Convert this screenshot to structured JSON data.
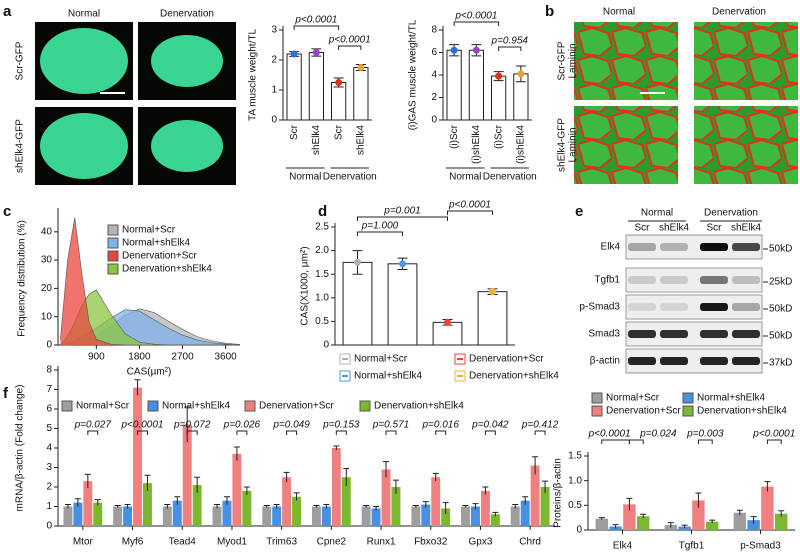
{
  "panel_labels": [
    "a",
    "b",
    "c",
    "d",
    "e",
    "f"
  ],
  "images_a": {
    "columns": [
      "Normal",
      "Denervation"
    ],
    "rows": [
      "Scr-GFP",
      "shElk4-GFP"
    ]
  },
  "images_b": {
    "columns": [
      "Normal",
      "Denervation"
    ],
    "rows": [
      [
        "Scr-GFP",
        "Laminin"
      ],
      [
        "shElk4-GFP",
        "Laminin"
      ]
    ]
  },
  "blot": {
    "groups": [
      "Normal",
      "Denervation"
    ],
    "lanes": [
      "Scr",
      "shElk4",
      "Scr",
      "shElk4"
    ],
    "rows": [
      {
        "protein": "Elk4",
        "size": "50kD"
      },
      {
        "protein": "Tgfb1",
        "size": "25kD"
      },
      {
        "protein": "p-Smad3",
        "size": "50kD"
      },
      {
        "protein": "Smad3",
        "size": "50kD"
      },
      {
        "protein": "β-actin",
        "size": "37kD"
      }
    ]
  },
  "chart_data": [
    {
      "type": "bar",
      "ylabel": "TA muscle weight/TL",
      "categories": [
        "Scr",
        "shElk4",
        "Scr",
        "shElk4"
      ],
      "groups": [
        "Normal",
        "Denervation"
      ],
      "values": [
        2.2,
        2.25,
        1.25,
        1.75
      ],
      "errors": [
        0.08,
        0.12,
        0.15,
        0.1
      ],
      "colors": [
        "#2f6fd6",
        "#9b3fd1",
        "#e0301e",
        "#f0a030"
      ],
      "ylim": [
        0,
        3
      ],
      "yticks": [
        0,
        1,
        2,
        3
      ],
      "annotations": [
        "p<0.0001",
        "p<0.0001"
      ]
    },
    {
      "type": "bar",
      "ylabel": "(i)GAS muscle weight/TL",
      "categories": [
        "(i)Scr",
        "(i)shElk4",
        "(i)Scr",
        "(i)shElk4"
      ],
      "groups": [
        "Normal",
        "Denervation"
      ],
      "values": [
        6.2,
        6.2,
        3.9,
        4.1
      ],
      "errors": [
        0.5,
        0.5,
        0.4,
        0.7
      ],
      "colors": [
        "#2f6fd6",
        "#9b3fd1",
        "#e0301e",
        "#f0a030"
      ],
      "ylim": [
        0,
        8
      ],
      "yticks": [
        0,
        2,
        4,
        6,
        8
      ],
      "annotations": [
        "p<0.0001",
        "p=0.954"
      ]
    },
    {
      "type": "area",
      "ylabel": "Frequency distribution (%)",
      "xlabel": "CAS(µm²)",
      "x": [
        150,
        300,
        450,
        600,
        750,
        900,
        1200,
        1500,
        1800,
        2100,
        2400,
        2700,
        3000,
        3300,
        3600,
        3900
      ],
      "xlim": [
        100,
        3900
      ],
      "xticks": [
        900,
        1800,
        2700,
        3600
      ],
      "ylim": [
        0,
        47
      ],
      "yticks": [
        0,
        10,
        20,
        30,
        40
      ],
      "series": [
        {
          "name": "Normal+Scr",
          "color": "#b5b5b5",
          "values": [
            0,
            0,
            0.5,
            1,
            2,
            3,
            6.5,
            10.5,
            12.8,
            11.5,
            8.5,
            5.5,
            3,
            1.5,
            0.6,
            0.2
          ]
        },
        {
          "name": "Normal+shElk4",
          "color": "#7fb2e8",
          "values": [
            0,
            0.5,
            1.5,
            3,
            4.5,
            6,
            9.5,
            12.5,
            12,
            9,
            6,
            3.5,
            1.8,
            0.8,
            0.3,
            0
          ]
        },
        {
          "name": "Denervation+Scr",
          "color": "#e8453c",
          "values": [
            2,
            30,
            45,
            25,
            8,
            2,
            0.3,
            0,
            0,
            0,
            0,
            0,
            0,
            0,
            0,
            0
          ]
        },
        {
          "name": "Denervation+shElk4",
          "color": "#8cc63f",
          "values": [
            0,
            3,
            8,
            14,
            18,
            19.5,
            11,
            4,
            1,
            0.3,
            0,
            0,
            0,
            0,
            0,
            0
          ]
        }
      ]
    },
    {
      "type": "bar",
      "ylabel": "CAS(X1000, µm²)",
      "legend": true,
      "categories": [
        "Normal+Scr",
        "Normal+shElk4",
        "Denervation+Scr",
        "Denervation+shElk4"
      ],
      "values": [
        1.75,
        1.72,
        0.48,
        1.13
      ],
      "errors": [
        0.25,
        0.12,
        0.06,
        0.06
      ],
      "colors": [
        "#b0b0b0",
        "#4a9be0",
        "#e8453c",
        "#f5b041"
      ],
      "ylim": [
        0,
        2.5
      ],
      "yticks": [
        0,
        0.5,
        {
          "value": 1,
          "label": "1.0"
        },
        1.5,
        {
          "value": 2,
          "label": "2.0"
        },
        2.5
      ],
      "annotations": [
        "p=0.001",
        "p=1.000",
        "p<0.0001"
      ]
    },
    {
      "type": "grouped_bar",
      "ylabel": "mRNA/β-actin (Fold change)",
      "categories": [
        "Mtor",
        "Myf6",
        "Tead4",
        "Myod1",
        "Trim63",
        "Cpne2",
        "Runx1",
        "Fbxo32",
        "Gpx3",
        "Chrd"
      ],
      "ylim": [
        0,
        8
      ],
      "yticks": [
        0,
        1,
        2,
        3,
        4,
        5,
        6,
        7,
        8
      ],
      "series": [
        {
          "name": "Normal+Scr",
          "color": "#9e9e9e",
          "values": [
            1,
            1,
            1,
            1,
            1,
            1,
            1,
            1,
            1,
            1
          ],
          "errors": [
            0.1,
            0.05,
            0.1,
            0.1,
            0.05,
            0.05,
            0.05,
            0.05,
            0.05,
            0.1
          ]
        },
        {
          "name": "Normal+shElk4",
          "color": "#4a90e2",
          "values": [
            1.2,
            1,
            1.3,
            1.3,
            1,
            1,
            0.9,
            1.1,
            1,
            1.3
          ],
          "errors": [
            0.2,
            0.1,
            0.2,
            0.2,
            0.1,
            0.1,
            0.1,
            0.15,
            0.15,
            0.2
          ]
        },
        {
          "name": "Denervation+Scr",
          "color": "#f08080",
          "values": [
            2.3,
            7.1,
            5.2,
            3.7,
            2.5,
            4,
            2.9,
            2.5,
            1.8,
            3.1
          ],
          "errors": [
            0.35,
            0.4,
            0.9,
            0.35,
            0.25,
            0.1,
            0.4,
            0.2,
            0.2,
            0.45
          ]
        },
        {
          "name": "Denervation+shElk4",
          "color": "#7cb82f",
          "values": [
            1.2,
            2.2,
            2.1,
            1.8,
            1.5,
            2.5,
            2,
            0.9,
            0.6,
            2
          ],
          "errors": [
            0.15,
            0.4,
            0.4,
            0.2,
            0.2,
            0.45,
            0.35,
            0.3,
            0.1,
            0.3
          ]
        }
      ],
      "annotations": [
        "p=0.027",
        "p<0.0001",
        "p=0.072",
        "p=0.026",
        "p=0.049",
        "p=0.153",
        "p=0.571",
        "p=0.016",
        "p=0.042",
        "p=0.412"
      ]
    },
    {
      "type": "grouped_bar",
      "ylabel": "Proteins/β-actin",
      "categories": [
        "Elk4",
        "Tgfb1",
        "p-Smad3"
      ],
      "ylim": [
        0,
        1.5
      ],
      "yticks": [
        0,
        0.5,
        {
          "value": 1,
          "label": "1.0"
        },
        1.5
      ],
      "series": [
        {
          "name": "Normal+Scr",
          "color": "#9e9e9e",
          "values": [
            0.23,
            0.1,
            0.35
          ],
          "errors": [
            0.02,
            0.05,
            0.05
          ]
        },
        {
          "name": "Normal+shElk4",
          "color": "#4a90e2",
          "values": [
            0.07,
            0.07,
            0.2
          ],
          "errors": [
            0.04,
            0.03,
            0.07
          ]
        },
        {
          "name": "Denervation+Scr",
          "color": "#f08080",
          "values": [
            0.52,
            0.6,
            0.88
          ],
          "errors": [
            0.12,
            0.15,
            0.1
          ]
        },
        {
          "name": "Denervation+shElk4",
          "color": "#7cb82f",
          "values": [
            0.28,
            0.17,
            0.33
          ],
          "errors": [
            0.04,
            0.03,
            0.06
          ]
        }
      ],
      "annotations": [
        "p<0.0001",
        "p=0.024",
        "p=0.003",
        "p<0.0001"
      ]
    }
  ]
}
